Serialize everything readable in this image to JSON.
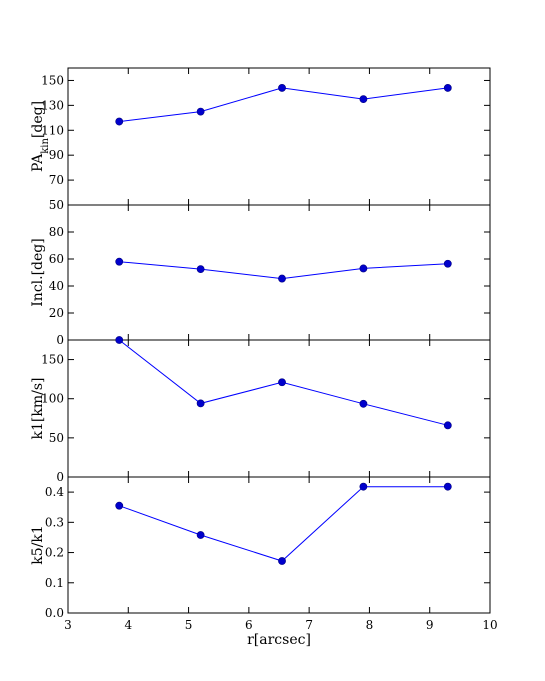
{
  "chart_data": [
    {
      "type": "line",
      "ylabel": "PA_kin[deg]",
      "ylabel_main": "PA",
      "ylabel_sub": "kin",
      "ylabel_tail": "[deg]",
      "x": [
        3.85,
        5.2,
        6.55,
        7.9,
        9.3
      ],
      "values": [
        117,
        125,
        144,
        135,
        144
      ],
      "xlim": [
        3,
        10
      ],
      "ylim": [
        50,
        160
      ],
      "yticks": [
        50,
        70,
        90,
        110,
        130,
        150
      ],
      "grid": false,
      "color": "#0000ff"
    },
    {
      "type": "line",
      "ylabel": "Incl.[deg]",
      "x": [
        3.85,
        5.2,
        6.55,
        7.9,
        9.3
      ],
      "values": [
        58,
        52.5,
        45.5,
        53,
        56.5
      ],
      "xlim": [
        3,
        10
      ],
      "ylim": [
        0,
        100
      ],
      "yticks": [
        0,
        20,
        40,
        60,
        80
      ],
      "grid": false,
      "color": "#0000ff"
    },
    {
      "type": "line",
      "ylabel": "k1[km/s]",
      "x": [
        3.85,
        5.2,
        6.55,
        7.9,
        9.3
      ],
      "values": [
        175,
        94,
        121,
        93.5,
        66
      ],
      "xlim": [
        3,
        10
      ],
      "ylim": [
        0,
        175
      ],
      "yticks": [
        0,
        50,
        100,
        150
      ],
      "grid": false,
      "color": "#0000ff"
    },
    {
      "type": "line",
      "ylabel": "k5/k1",
      "xlabel": "r[arcsec]",
      "x": [
        3.85,
        5.2,
        6.55,
        7.9,
        9.3
      ],
      "values": [
        0.355,
        0.258,
        0.172,
        0.418,
        0.418
      ],
      "xlim": [
        3,
        10
      ],
      "ylim": [
        0,
        0.45
      ],
      "yticks": [
        0.0,
        0.1,
        0.2,
        0.3,
        0.4
      ],
      "xticks": [
        3,
        4,
        5,
        6,
        7,
        8,
        9,
        10
      ],
      "grid": false,
      "color": "#0000ff"
    }
  ]
}
